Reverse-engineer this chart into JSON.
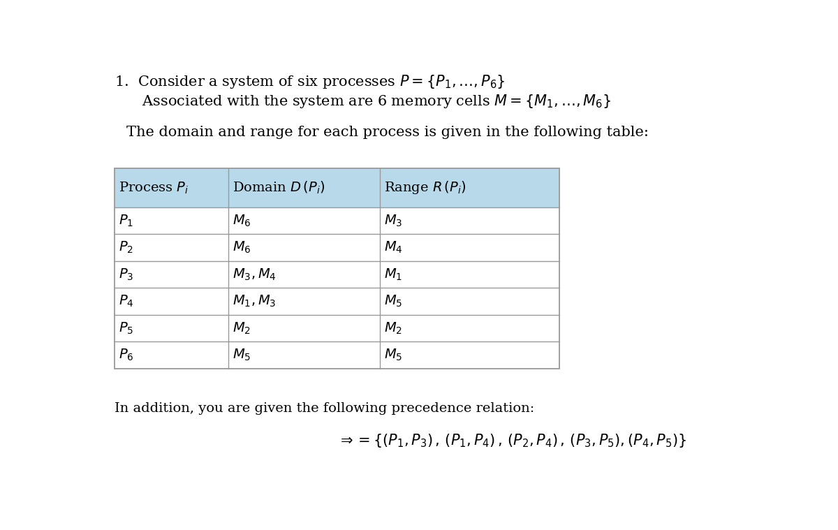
{
  "title_line1": "1.  Consider a system of six processes $P = \\{P_1, \\ldots, P_6\\}$",
  "title_line2": "      Associated with the system are 6 memory cells $M = \\{M_1, \\ldots, M_6\\}$",
  "subtitle": "The domain and range for each process is given in the following table:",
  "table_header": [
    "Process $P_i$",
    "Domain $D\\,(P_i)$",
    "Range $R\\,(P_i)$"
  ],
  "table_rows": [
    [
      "$P_1$",
      "$M_6$",
      "$M_3$"
    ],
    [
      "$P_2$",
      "$M_6$",
      "$M_4$"
    ],
    [
      "$P_3$",
      "$M_3, M_4$",
      "$M_1$"
    ],
    [
      "$P_4$",
      "$M_1, M_3$",
      "$M_5$"
    ],
    [
      "$P_5$",
      "$M_2$",
      "$M_2$"
    ],
    [
      "$P_6$",
      "$M_5$",
      "$M_5$"
    ]
  ],
  "header_bg": "#b8d9ea",
  "row_bg": "#ffffff",
  "border_color": "#999999",
  "footer_line1": "In addition, you are given the following precedence relation:",
  "footer_line2": "$\\Rightarrow= \\{(P_1, P_3)\\,,\\,(P_1, P_4)\\,,\\,(P_2, P_4)\\,,\\,(P_3, P_5),(P_4, P_5)\\}$",
  "font_size_title": 15,
  "font_size_table": 14,
  "font_size_footer": 14
}
